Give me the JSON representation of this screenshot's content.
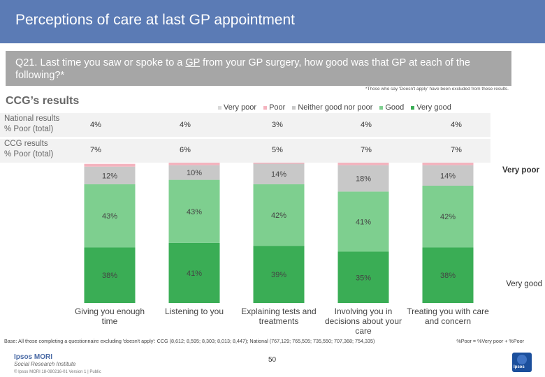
{
  "header": {
    "title": "Perceptions of care at last GP appointment"
  },
  "question": {
    "text_before": "Q21. Last time you saw or spoke to a ",
    "underlined": "GP",
    "text_after": " from your GP surgery, how good was that GP at each of the following?*"
  },
  "note": "*Those who say 'Doesn't apply' have been excluded from these results.",
  "section_title": "CCG’s results",
  "side_labels": {
    "top": "Very poor",
    "bottom": "Very good"
  },
  "table": {
    "rows": [
      {
        "label_line1": "National results",
        "label_line2": "% Poor (total)",
        "values": [
          "4%",
          "4%",
          "3%",
          "4%",
          "4%"
        ]
      },
      {
        "label_line1": "CCG results",
        "label_line2": "% Poor (total)",
        "values": [
          "7%",
          "6%",
          "5%",
          "7%",
          "7%"
        ]
      }
    ]
  },
  "chart_data": {
    "type": "bar",
    "stacked": true,
    "categories": [
      "Giving you enough time",
      "Listening to you",
      "Explaining tests and treatments",
      "Involving you in decisions about your care",
      "Treating you with care and concern"
    ],
    "series": [
      {
        "name": "Very poor",
        "color": "#d9d9d9",
        "values": [
          null,
          null,
          null,
          null,
          null
        ]
      },
      {
        "name": "Poor",
        "color": "#f4b3be",
        "values": [
          null,
          null,
          null,
          null,
          null
        ]
      },
      {
        "name": "Neither good nor poor",
        "color": "#c8c8c8",
        "values": [
          12,
          10,
          14,
          18,
          14
        ]
      },
      {
        "name": "Good",
        "color": "#7ecf8f",
        "values": [
          43,
          43,
          42,
          41,
          42
        ]
      },
      {
        "name": "Very good",
        "color": "#3aad55",
        "values": [
          38,
          41,
          39,
          35,
          38
        ]
      }
    ],
    "labels": [
      [
        "12%",
        "43%",
        "38%"
      ],
      [
        "10%",
        "43%",
        "41%"
      ],
      [
        "14%",
        "42%",
        "39%"
      ],
      [
        "18%",
        "41%",
        "35%"
      ],
      [
        "14%",
        "42%",
        "38%"
      ]
    ],
    "legend_position": "top"
  },
  "footer": {
    "base": "Base: All those completing a questionnaire excluding 'doesn't apply': CCG (8,612; 8,595; 8,303; 8,013; 8,447); National (767,129; 765,505; 735,550; 707,368; 754,335)",
    "poor_note": "%Poor = %Very poor + %Poor",
    "page_number": "50",
    "logo_line1": "Ipsos MORI",
    "logo_line2": "Social Research Institute",
    "copyright": "© Ipsos MORI    18-080216-01 Version 1 | Public",
    "ipsos_badge": "Ipsos"
  }
}
